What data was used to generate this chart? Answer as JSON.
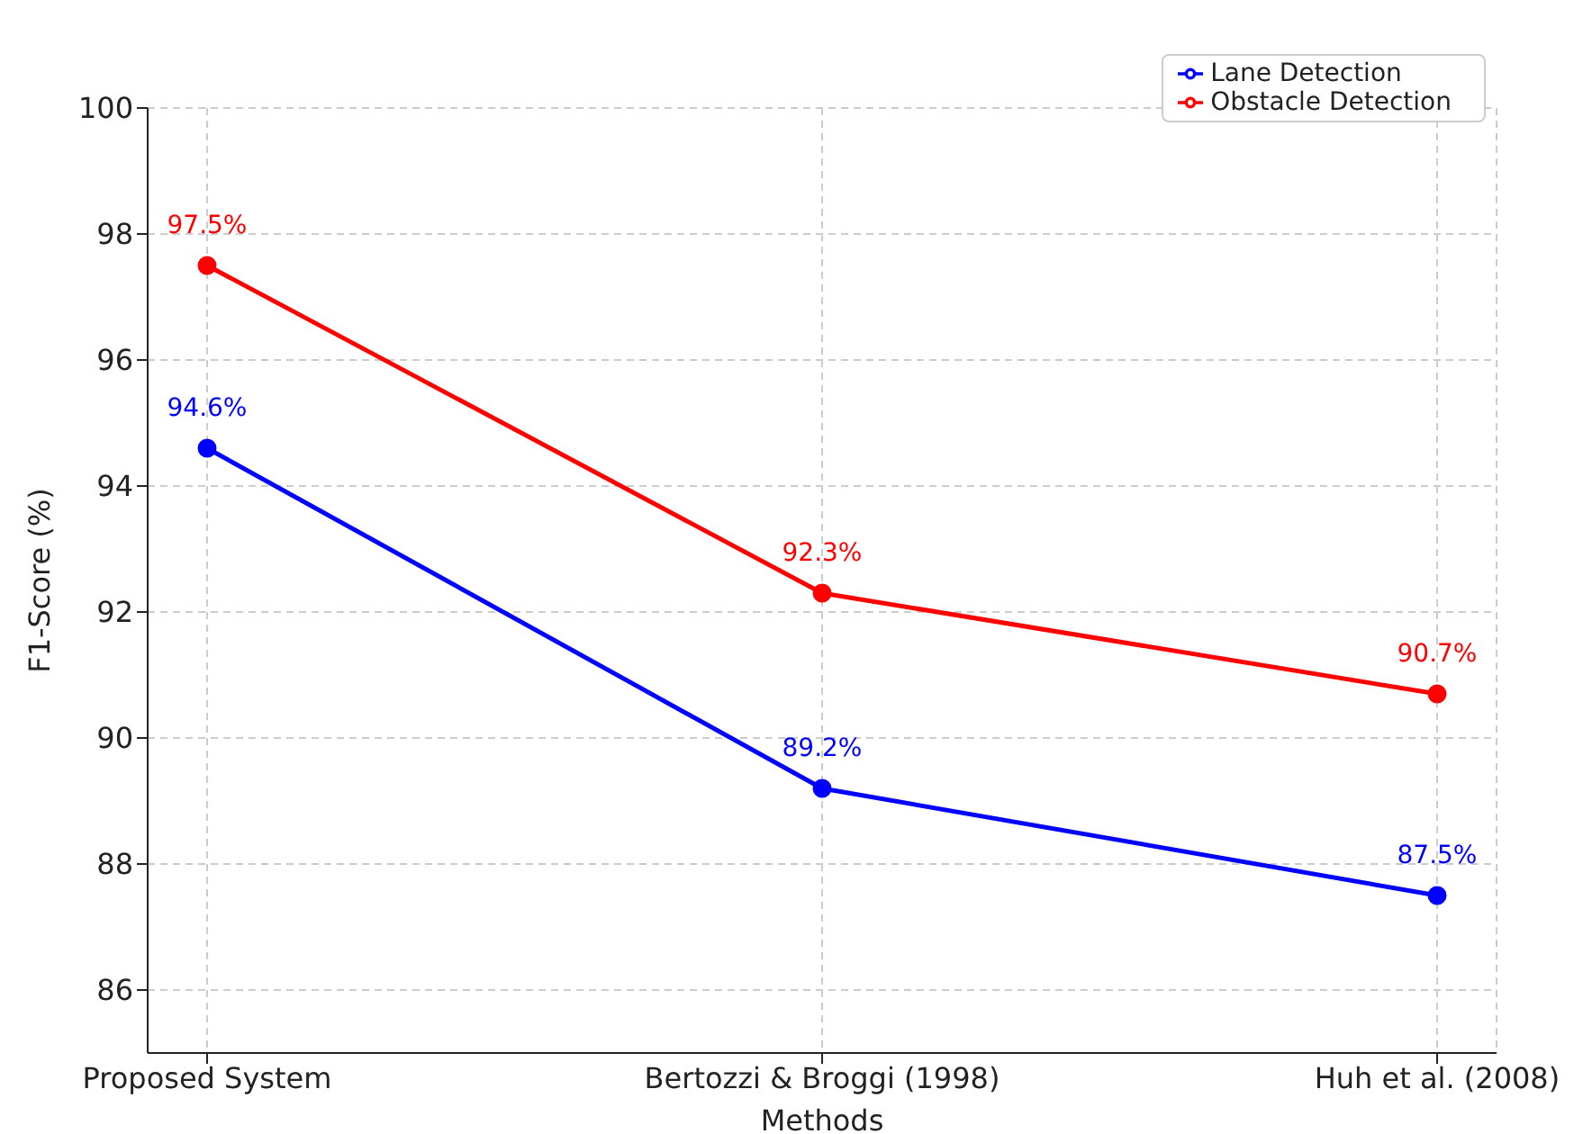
{
  "chart_data": {
    "type": "line",
    "xlabel": "Methods",
    "ylabel": "F1-Score (%)",
    "categories": [
      "Proposed System",
      "Bertozzi & Broggi (1998)",
      "Huh et al. (2008)"
    ],
    "series": [
      {
        "name": "Lane Detection",
        "color": "#0000ff",
        "values": [
          94.6,
          89.2,
          87.5
        ],
        "value_labels": [
          "94.6%",
          "89.2%",
          "87.5%"
        ]
      },
      {
        "name": "Obstacle Detection",
        "color": "#ff0000",
        "values": [
          97.5,
          92.3,
          90.7
        ],
        "value_labels": [
          "97.5%",
          "92.3%",
          "90.7%"
        ]
      }
    ],
    "ylim": [
      85,
      100
    ],
    "yticks": [
      86,
      88,
      90,
      92,
      94,
      96,
      98,
      100
    ],
    "grid": true,
    "legend": "top right",
    "marker": "circle",
    "line_style": "solid"
  }
}
